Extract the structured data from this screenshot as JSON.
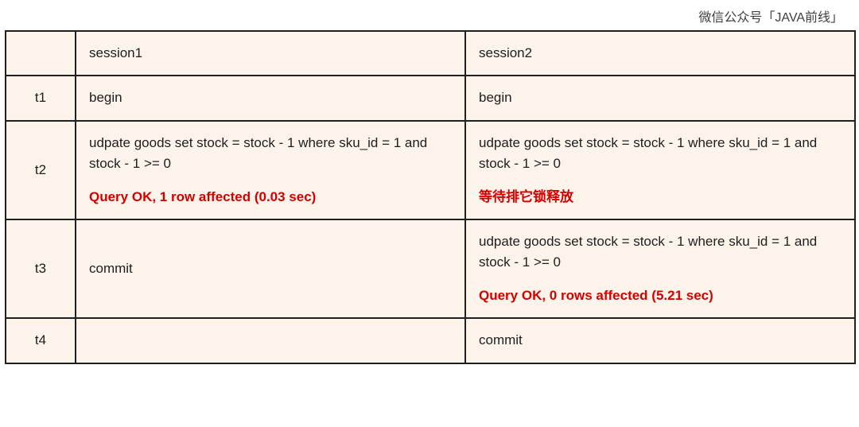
{
  "header": "微信公众号「JAVA前线」",
  "table": {
    "background_color": "#fcf3ea",
    "border_color": "#202020",
    "highlight_color": "#d40000",
    "columns": {
      "time": "",
      "s1": "session1",
      "s2": "session2"
    },
    "rows": [
      {
        "time": "t1",
        "s1": {
          "text": "begin"
        },
        "s2": {
          "text": "begin"
        }
      },
      {
        "time": "t2",
        "s1": {
          "text": "udpate goods set stock = stock - 1 where sku_id = 1 and stock - 1 >= 0",
          "result": "Query OK, 1 row affected (0.03 sec)"
        },
        "s2": {
          "text": "udpate goods set stock = stock - 1 where sku_id = 1 and stock - 1 >= 0",
          "result": "等待排它锁释放"
        }
      },
      {
        "time": "t3",
        "s1": {
          "text": "commit"
        },
        "s2": {
          "text": "udpate goods set stock = stock - 1 where sku_id = 1 and stock - 1 >= 0",
          "result": "Query OK, 0 rows affected (5.21 sec)"
        }
      },
      {
        "time": "t4",
        "s1": {
          "text": ""
        },
        "s2": {
          "text": "commit"
        }
      }
    ]
  }
}
